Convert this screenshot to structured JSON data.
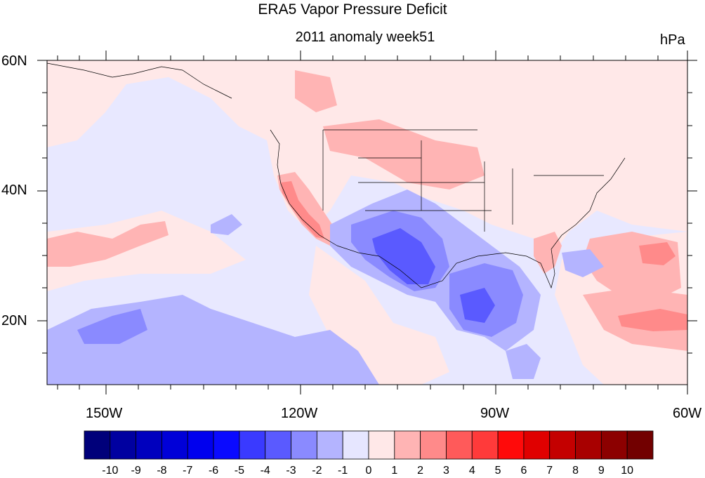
{
  "title": "ERA5 Vapor Pressure Deficit",
  "subtitle": "2011 anomaly week51",
  "units": "hPa",
  "lat_labels": [
    "60N",
    "40N",
    "20N"
  ],
  "lon_labels": [
    "150W",
    "120W",
    "90W",
    "60W"
  ],
  "colorbar": {
    "labels": [
      "-10",
      "-9",
      "-8",
      "-7",
      "-6",
      "-5",
      "-4",
      "-3",
      "-2",
      "-1",
      "0",
      "1",
      "2",
      "3",
      "4",
      "5",
      "6",
      "7",
      "8",
      "9",
      "10"
    ],
    "colors": [
      "#00007a",
      "#0000a0",
      "#0000be",
      "#0000d8",
      "#0000ee",
      "#0a0aff",
      "#3a3aff",
      "#5a5aff",
      "#8a8aff",
      "#b4b4ff",
      "#e6e6ff",
      "#ffe8e8",
      "#ffb4b4",
      "#ff8a8a",
      "#ff5a5a",
      "#ff3a3a",
      "#ff0a0a",
      "#e00000",
      "#c40000",
      "#a80000",
      "#8c0000",
      "#720000"
    ]
  },
  "map_colors": {
    "ocean_neutral": "#e8e8ff",
    "pos_light": "#ffe8e8",
    "pos_mid": "#ffb4b4",
    "pos_strong": "#ff8a8a",
    "neg_light": "#b4b4ff",
    "neg_mid": "#8a8aff",
    "neg_strong": "#5a5aff"
  }
}
